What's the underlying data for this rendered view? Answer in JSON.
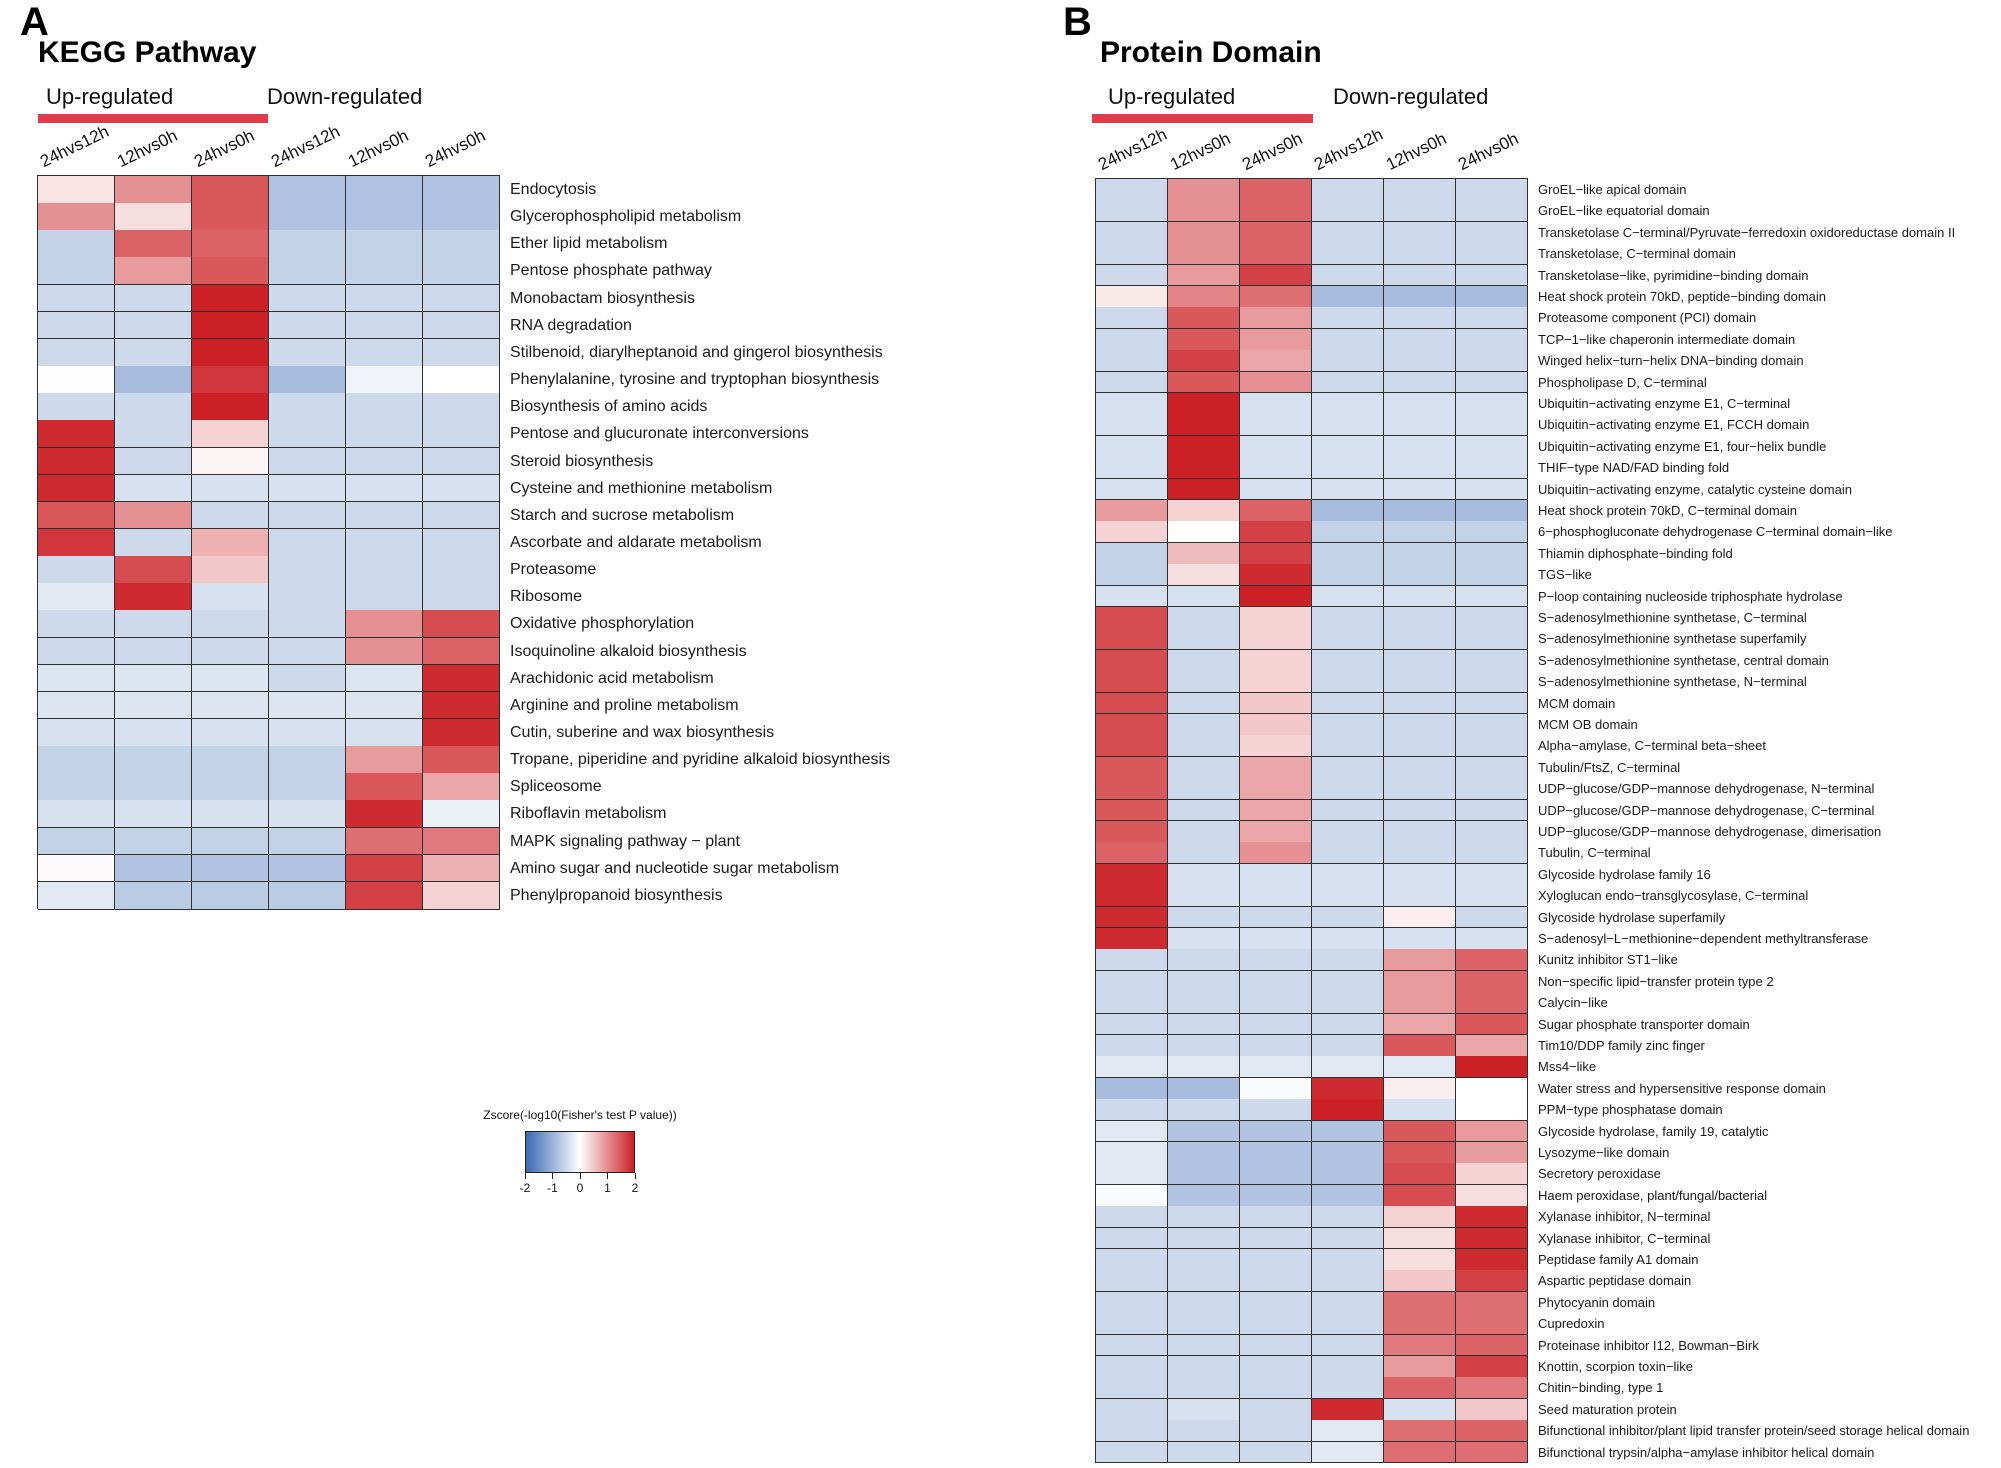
{
  "panels": {
    "a": {
      "letter": "A"
    },
    "b": {
      "letter": "B"
    },
    "legend": {
      "title": "Zscore(-log10(Fisher's test P value))",
      "ticks": [
        "-2",
        "-1",
        "0",
        "1",
        "2"
      ]
    },
    "colors": {
      "up_bar": "#e2394b",
      "down_bar": "#5a7ec6",
      "heat_positive": "#cb2026",
      "heat_negative": "#3b69b1",
      "cell_border": "#2f2f2f"
    }
  },
  "chart_data": [
    {
      "type": "heatmap",
      "title": "KEGG Pathway",
      "value_label": "Zscore(-log10(Fisher's test P value))",
      "value_range": [
        -2,
        2
      ],
      "col_groups": [
        {
          "label": "Up-regulated",
          "columns": [
            0,
            1,
            2
          ]
        },
        {
          "label": "Down-regulated",
          "columns": [
            3,
            4,
            5
          ]
        }
      ],
      "columns": [
        "24hvs12h",
        "12hvs0h",
        "24hvs0h",
        "24hvs12h",
        "12hvs0h",
        "24hvs0h"
      ],
      "rows": [
        "Endocytosis",
        "Glycerophospholipid metabolism",
        "Ether lipid metabolism",
        "Pentose phosphate pathway",
        "Monobactam biosynthesis",
        "RNA degradation",
        "Stilbenoid, diarylheptanoid and gingerol biosynthesis",
        "Phenylalanine, tyrosine and tryptophan biosynthesis",
        "Biosynthesis of amino acids",
        "Pentose and glucuronate interconversions",
        "Steroid biosynthesis",
        "Cysteine and methionine metabolism",
        "Starch and sucrose metabolism",
        "Ascorbate and aldarate metabolism",
        "Proteasome",
        "Ribosome",
        "Oxidative phosphorylation",
        "Isoquinoline alkaloid biosynthesis",
        "Arachidonic acid metabolism",
        "Arginine and proline metabolism",
        "Cutin, suberine and wax biosynthesis",
        "Tropane, piperidine and pyridine alkaloid biosynthesis",
        "Spliceosome",
        "Riboflavin metabolism",
        "MAPK signaling pathway − plant",
        "Amino sugar and nucleotide sugar metabolism",
        "Phenylpropanoid biosynthesis"
      ],
      "values": [
        [
          0.25,
          1.0,
          1.5,
          -0.8,
          -0.8,
          -0.8
        ],
        [
          1.0,
          0.3,
          1.5,
          -0.8,
          -0.8,
          -0.8
        ],
        [
          -0.6,
          1.4,
          1.4,
          -0.6,
          -0.6,
          -0.6
        ],
        [
          -0.6,
          0.9,
          1.5,
          -0.6,
          -0.6,
          -0.6
        ],
        [
          -0.5,
          -0.5,
          2.0,
          -0.5,
          -0.5,
          -0.5
        ],
        [
          -0.5,
          -0.5,
          2.0,
          -0.5,
          -0.5,
          -0.5
        ],
        [
          -0.5,
          -0.5,
          2.0,
          -0.5,
          -0.5,
          -0.5
        ],
        [
          0.02,
          -0.9,
          1.8,
          -0.9,
          -0.15,
          0.0
        ],
        [
          -0.5,
          -0.5,
          2.0,
          -0.5,
          -0.5,
          -0.5
        ],
        [
          1.9,
          -0.5,
          0.4,
          -0.5,
          -0.5,
          -0.5
        ],
        [
          1.9,
          -0.5,
          0.1,
          -0.5,
          -0.5,
          -0.5
        ],
        [
          1.9,
          -0.4,
          -0.4,
          -0.4,
          -0.4,
          -0.4
        ],
        [
          1.5,
          1.0,
          -0.5,
          -0.5,
          -0.5,
          -0.5
        ],
        [
          1.8,
          -0.5,
          0.7,
          -0.5,
          -0.5,
          -0.5
        ],
        [
          -0.5,
          1.6,
          0.5,
          -0.5,
          -0.5,
          -0.5
        ],
        [
          -0.3,
          1.9,
          -0.4,
          -0.5,
          -0.5,
          -0.5
        ],
        [
          -0.5,
          -0.5,
          -0.5,
          -0.5,
          1.0,
          1.6
        ],
        [
          -0.5,
          -0.5,
          -0.5,
          -0.5,
          1.0,
          1.4
        ],
        [
          -0.35,
          -0.35,
          -0.35,
          -0.5,
          -0.35,
          1.9
        ],
        [
          -0.35,
          -0.35,
          -0.35,
          -0.35,
          -0.35,
          1.9
        ],
        [
          -0.4,
          -0.4,
          -0.4,
          -0.4,
          -0.4,
          1.9
        ],
        [
          -0.6,
          -0.6,
          -0.6,
          -0.6,
          0.9,
          1.5
        ],
        [
          -0.6,
          -0.6,
          -0.6,
          -0.6,
          1.5,
          0.8
        ],
        [
          -0.4,
          -0.4,
          -0.4,
          -0.4,
          1.9,
          -0.2
        ],
        [
          -0.6,
          -0.6,
          -0.6,
          -0.6,
          1.3,
          1.2
        ],
        [
          0.05,
          -0.8,
          -0.8,
          -0.8,
          1.7,
          0.7
        ],
        [
          -0.3,
          -0.7,
          -0.7,
          -0.7,
          1.7,
          0.4
        ]
      ]
    },
    {
      "type": "heatmap",
      "title": "Protein Domain",
      "value_label": "Zscore(-log10(Fisher's test P value))",
      "value_range": [
        -2,
        2
      ],
      "col_groups": [
        {
          "label": "Up-regulated",
          "columns": [
            0,
            1,
            2
          ]
        },
        {
          "label": "Down-regulated",
          "columns": [
            3,
            4,
            5
          ]
        }
      ],
      "columns": [
        "24hvs12h",
        "12hvs0h",
        "24hvs0h",
        "24hvs12h",
        "12hvs0h",
        "24hvs0h"
      ],
      "rows": [
        "GroEL−like apical domain",
        "GroEL−like equatorial domain",
        "Transketolase C−terminal/Pyruvate−ferredoxin oxidoreductase domain II",
        "Transketolase, C−terminal domain",
        "Transketolase−like, pyrimidine−binding domain",
        "Heat shock protein 70kD, peptide−binding domain",
        "Proteasome component (PCI) domain",
        "TCP−1−like chaperonin intermediate domain",
        "Winged helix−turn−helix DNA−binding domain",
        "Phospholipase D, C−terminal",
        "Ubiquitin−activating enzyme E1, C−terminal",
        "Ubiquitin−activating enzyme E1, FCCH domain",
        "Ubiquitin−activating enzyme E1, four−helix bundle",
        "THIF−type NAD/FAD binding fold",
        "Ubiquitin−activating enzyme, catalytic cysteine domain",
        "Heat shock protein 70kD, C−terminal domain",
        "6−phosphogluconate dehydrogenase C−terminal domain−like",
        "Thiamin diphosphate−binding fold",
        "TGS−like",
        "P−loop containing nucleoside triphosphate hydrolase",
        "S−adenosylmethionine synthetase, C−terminal",
        "S−adenosylmethionine synthetase superfamily",
        "S−adenosylmethionine synthetase, central domain",
        "S−adenosylmethionine synthetase, N−terminal",
        "MCM domain",
        "MCM OB domain",
        "Alpha−amylase, C−terminal beta−sheet",
        "Tubulin/FtsZ, C−terminal",
        "UDP−glucose/GDP−mannose dehydrogenase, N−terminal",
        "UDP−glucose/GDP−mannose dehydrogenase, C−terminal",
        "UDP−glucose/GDP−mannose dehydrogenase, dimerisation",
        "Tubulin, C−terminal",
        "Glycoside hydrolase family 16",
        "Xyloglucan endo−transglycosylase, C−terminal",
        "Glycoside hydrolase superfamily",
        "S−adenosyl−L−methionine−dependent methyltransferase",
        "Kunitz inhibitor ST1−like",
        "Non−specific lipid−transfer protein type 2",
        "Calycin−like",
        "Sugar phosphate transporter domain",
        "Tim10/DDP family zinc finger",
        "Mss4−like",
        "Water stress and hypersensitive response domain",
        "PPM−type phosphatase domain",
        "Glycoside hydrolase, family 19, catalytic",
        "Lysozyme−like domain",
        "Secretory peroxidase",
        "Haem peroxidase, plant/fungal/bacterial",
        "Xylanase inhibitor, N−terminal",
        "Xylanase inhibitor, C−terminal",
        "Peptidase family A1 domain",
        "Aspartic peptidase domain",
        "Phytocyanin domain",
        "Cupredoxin",
        "Proteinase inhibitor I12, Bowman−Birk",
        "Knottin, scorpion toxin−like",
        "Chitin−binding, type 1",
        "Seed maturation protein",
        "Bifunctional inhibitor/plant lipid transfer protein/seed storage helical domain",
        "Bifunctional trypsin/alpha−amylase inhibitor helical domain"
      ],
      "values": [
        [
          -0.5,
          1.0,
          1.4,
          -0.5,
          -0.5,
          -0.5
        ],
        [
          -0.5,
          1.0,
          1.4,
          -0.5,
          -0.5,
          -0.5
        ],
        [
          -0.5,
          1.0,
          1.4,
          -0.5,
          -0.5,
          -0.5
        ],
        [
          -0.5,
          1.0,
          1.4,
          -0.5,
          -0.5,
          -0.5
        ],
        [
          -0.5,
          0.9,
          1.7,
          -0.5,
          -0.5,
          -0.5
        ],
        [
          0.2,
          1.1,
          1.3,
          -0.9,
          -0.9,
          -0.9
        ],
        [
          -0.5,
          1.5,
          0.9,
          -0.5,
          -0.5,
          -0.5
        ],
        [
          -0.5,
          1.5,
          0.9,
          -0.5,
          -0.5,
          -0.5
        ],
        [
          -0.5,
          1.7,
          0.8,
          -0.5,
          -0.5,
          -0.5
        ],
        [
          -0.5,
          1.5,
          1.0,
          -0.5,
          -0.5,
          -0.5
        ],
        [
          -0.4,
          2.0,
          -0.4,
          -0.4,
          -0.4,
          -0.4
        ],
        [
          -0.4,
          2.0,
          -0.4,
          -0.4,
          -0.4,
          -0.4
        ],
        [
          -0.4,
          2.0,
          -0.4,
          -0.4,
          -0.4,
          -0.4
        ],
        [
          -0.4,
          2.0,
          -0.4,
          -0.4,
          -0.4,
          -0.4
        ],
        [
          -0.4,
          2.0,
          -0.4,
          -0.4,
          -0.4,
          -0.4
        ],
        [
          0.9,
          0.4,
          1.4,
          -0.9,
          -0.9,
          -0.9
        ],
        [
          0.4,
          0.02,
          1.7,
          -0.6,
          -0.6,
          -0.6
        ],
        [
          -0.6,
          0.6,
          1.7,
          -0.6,
          -0.6,
          -0.6
        ],
        [
          -0.6,
          0.3,
          1.9,
          -0.6,
          -0.6,
          -0.6
        ],
        [
          -0.4,
          -0.4,
          2.0,
          -0.4,
          -0.4,
          -0.4
        ],
        [
          1.6,
          -0.5,
          0.4,
          -0.5,
          -0.5,
          -0.5
        ],
        [
          1.6,
          -0.5,
          0.4,
          -0.5,
          -0.5,
          -0.5
        ],
        [
          1.6,
          -0.5,
          0.4,
          -0.5,
          -0.5,
          -0.5
        ],
        [
          1.6,
          -0.5,
          0.4,
          -0.5,
          -0.5,
          -0.5
        ],
        [
          1.6,
          -0.5,
          0.5,
          -0.5,
          -0.5,
          -0.5
        ],
        [
          1.6,
          -0.5,
          0.5,
          -0.5,
          -0.5,
          -0.5
        ],
        [
          1.6,
          -0.5,
          0.4,
          -0.5,
          -0.5,
          -0.5
        ],
        [
          1.5,
          -0.5,
          0.8,
          -0.5,
          -0.5,
          -0.5
        ],
        [
          1.5,
          -0.5,
          0.8,
          -0.5,
          -0.5,
          -0.5
        ],
        [
          1.5,
          -0.5,
          0.8,
          -0.5,
          -0.5,
          -0.5
        ],
        [
          1.5,
          -0.5,
          0.8,
          -0.5,
          -0.5,
          -0.5
        ],
        [
          1.4,
          -0.5,
          1.0,
          -0.5,
          -0.5,
          -0.5
        ],
        [
          1.9,
          -0.4,
          -0.4,
          -0.4,
          -0.4,
          -0.4
        ],
        [
          1.9,
          -0.4,
          -0.4,
          -0.4,
          -0.4,
          -0.4
        ],
        [
          1.9,
          -0.5,
          -0.5,
          -0.5,
          0.15,
          -0.5
        ],
        [
          1.9,
          -0.4,
          -0.4,
          -0.4,
          -0.4,
          -0.4
        ],
        [
          -0.5,
          -0.5,
          -0.5,
          -0.5,
          0.9,
          1.4
        ],
        [
          -0.5,
          -0.5,
          -0.5,
          -0.5,
          0.9,
          1.4
        ],
        [
          -0.5,
          -0.5,
          -0.5,
          -0.5,
          0.9,
          1.4
        ],
        [
          -0.5,
          -0.5,
          -0.5,
          -0.5,
          0.8,
          1.5
        ],
        [
          -0.5,
          -0.5,
          -0.5,
          -0.5,
          1.5,
          0.8
        ],
        [
          -0.3,
          -0.3,
          -0.3,
          -0.3,
          -0.3,
          2.0
        ],
        [
          -0.9,
          -0.9,
          -0.05,
          1.9,
          0.15,
          0.0
        ],
        [
          -0.5,
          -0.5,
          -0.5,
          2.0,
          -0.4,
          0.0
        ],
        [
          -0.3,
          -0.8,
          -0.8,
          -0.8,
          1.5,
          0.9
        ],
        [
          -0.3,
          -0.8,
          -0.8,
          -0.8,
          1.5,
          0.9
        ],
        [
          -0.3,
          -0.8,
          -0.8,
          -0.8,
          1.6,
          0.4
        ],
        [
          -0.05,
          -0.8,
          -0.8,
          -0.8,
          1.6,
          0.3
        ],
        [
          -0.5,
          -0.5,
          -0.5,
          -0.5,
          0.4,
          1.9
        ],
        [
          -0.5,
          -0.5,
          -0.5,
          -0.5,
          0.3,
          1.9
        ],
        [
          -0.5,
          -0.5,
          -0.5,
          -0.5,
          0.3,
          1.9
        ],
        [
          -0.5,
          -0.5,
          -0.5,
          -0.5,
          0.5,
          1.7
        ],
        [
          -0.5,
          -0.5,
          -0.5,
          -0.5,
          1.3,
          1.3
        ],
        [
          -0.5,
          -0.5,
          -0.5,
          -0.5,
          1.3,
          1.3
        ],
        [
          -0.5,
          -0.5,
          -0.5,
          -0.5,
          1.2,
          1.4
        ],
        [
          -0.5,
          -0.5,
          -0.5,
          -0.5,
          0.9,
          1.7
        ],
        [
          -0.5,
          -0.5,
          -0.5,
          -0.5,
          1.4,
          1.2
        ],
        [
          -0.5,
          -0.4,
          -0.5,
          1.9,
          -0.4,
          0.5
        ],
        [
          -0.5,
          -0.5,
          -0.5,
          -0.3,
          1.3,
          1.4
        ],
        [
          -0.5,
          -0.5,
          -0.5,
          -0.3,
          1.3,
          1.3
        ]
      ]
    }
  ]
}
